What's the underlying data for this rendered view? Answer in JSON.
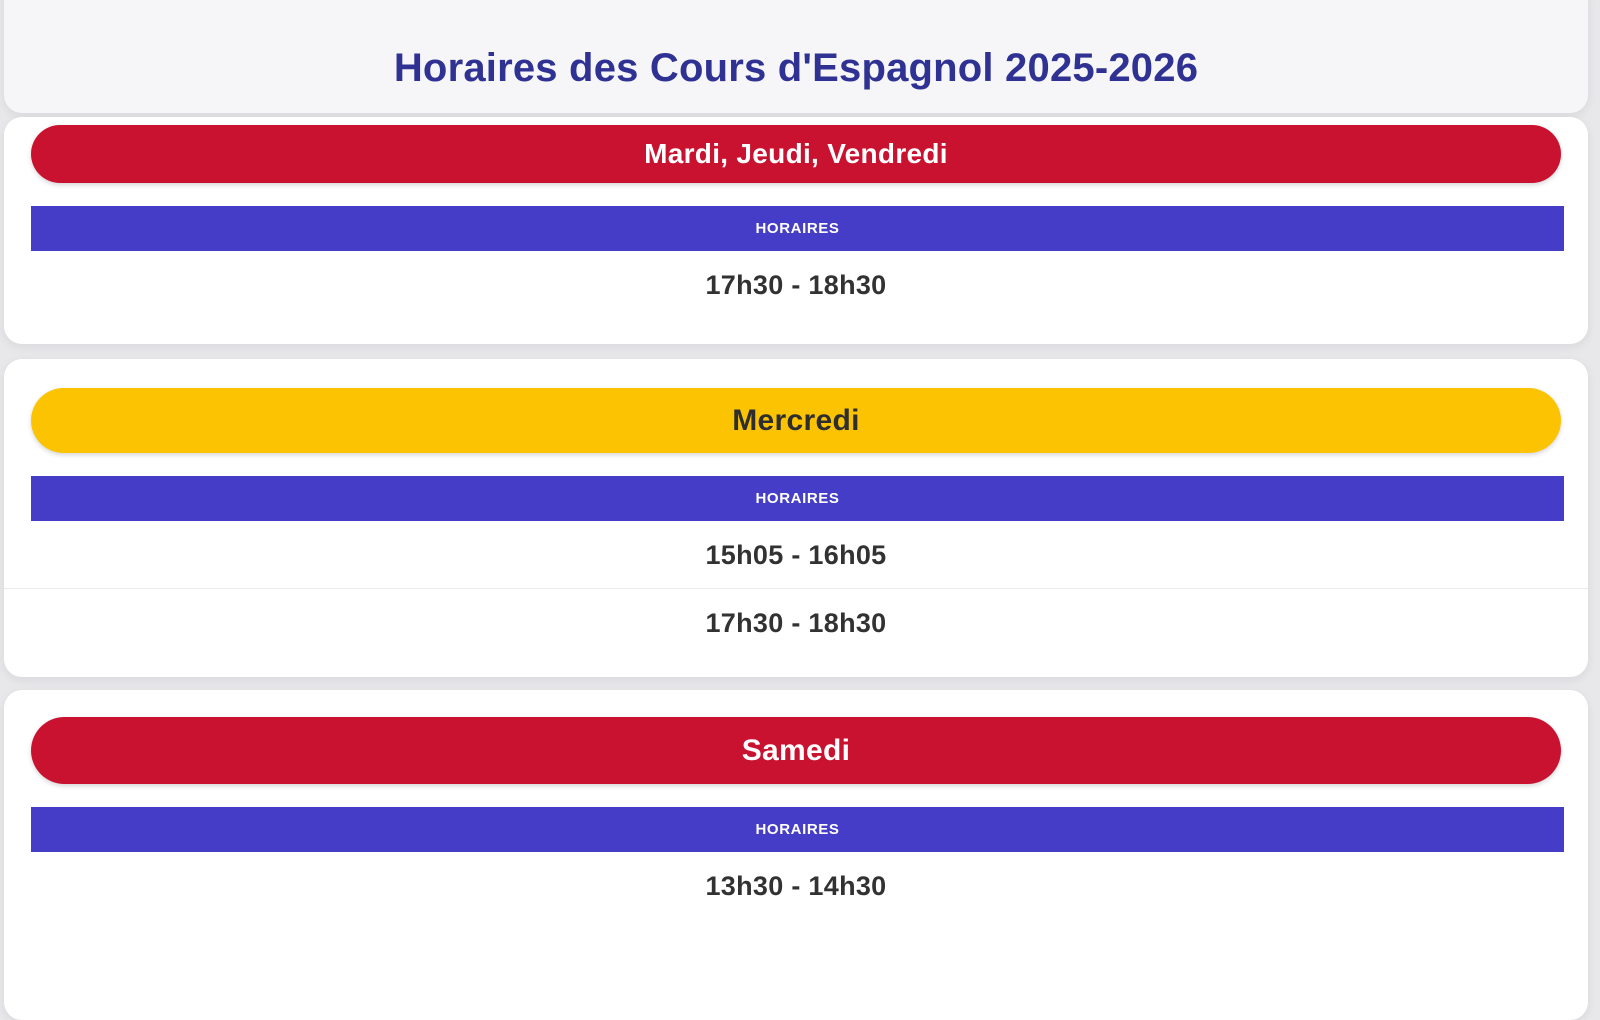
{
  "title": "Horaires des Cours d'Espagnol 2025-2026",
  "column_header": "HORAIRES",
  "sections": [
    {
      "day": "Mardi, Jeudi, Vendredi",
      "variant": "red",
      "times": [
        "17h30 - 18h30"
      ]
    },
    {
      "day": "Mercredi",
      "variant": "yellow",
      "times": [
        "15h05 - 16h05",
        "17h30 - 18h30"
      ]
    },
    {
      "day": "Samedi",
      "variant": "red",
      "times": [
        "13h30 - 14h30"
      ]
    }
  ],
  "colors": {
    "red": "#c9122f",
    "yellow": "#fcc303",
    "indigo": "#453cc8",
    "title_blue": "#2f3193",
    "page_background": "#e8e8ea",
    "header_background": "#f6f6f8",
    "card_background": "#ffffff",
    "time_text": "#323233",
    "day_text_on_red": "#ffffff",
    "day_text_on_yellow": "#2e2e2e"
  }
}
